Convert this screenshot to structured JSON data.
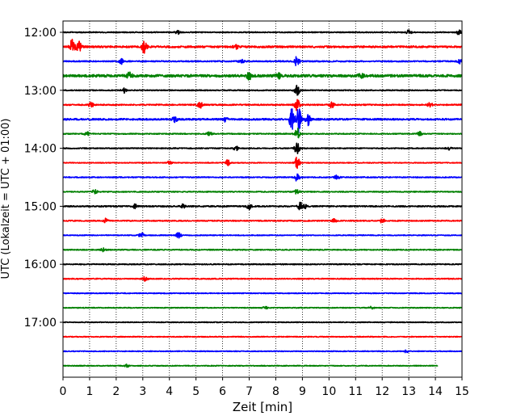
{
  "chart_data": {
    "type": "line",
    "title": "",
    "xlabel": "Zeit  [min]",
    "ylabel": "UTC (Lokalzeit = UTC + 01:00)",
    "xlim": [
      0,
      15
    ],
    "x_ticks": [
      0,
      1,
      2,
      3,
      4,
      5,
      6,
      7,
      8,
      9,
      10,
      11,
      12,
      13,
      14,
      15
    ],
    "y_tick_labels": [
      "12:00",
      "13:00",
      "14:00",
      "15:00",
      "16:00",
      "17:00"
    ],
    "grid": "vertical dotted",
    "trace_colors": [
      "#000000",
      "#ff0000",
      "#0000ff",
      "#008000"
    ],
    "trace_interval_minutes": 15,
    "series": [
      {
        "start": "12:00",
        "color": "#000000",
        "amplitude": 0.12,
        "events": [
          {
            "t": 4.3,
            "a": 0.5
          },
          {
            "t": 13.0,
            "a": 0.5
          },
          {
            "t": 14.9,
            "a": 0.6
          }
        ]
      },
      {
        "start": "12:15",
        "color": "#ff0000",
        "amplitude": 0.22,
        "events": [
          {
            "t": 0.35,
            "a": 2.2
          },
          {
            "t": 0.6,
            "a": 1.2
          },
          {
            "t": 3.05,
            "a": 1.5
          },
          {
            "t": 6.5,
            "a": 0.5
          }
        ]
      },
      {
        "start": "12:30",
        "color": "#0000ff",
        "amplitude": 0.15,
        "events": [
          {
            "t": 2.2,
            "a": 0.6
          },
          {
            "t": 6.7,
            "a": 0.6
          },
          {
            "t": 8.8,
            "a": 1.5
          },
          {
            "t": 14.9,
            "a": 0.5
          }
        ]
      },
      {
        "start": "12:45",
        "color": "#008000",
        "amplitude": 0.3,
        "events": [
          {
            "t": 2.5,
            "a": 0.7
          },
          {
            "t": 7.0,
            "a": 0.8
          },
          {
            "t": 8.1,
            "a": 0.6
          },
          {
            "t": 11.2,
            "a": 0.5
          }
        ]
      },
      {
        "start": "13:00",
        "color": "#000000",
        "amplitude": 0.12,
        "events": [
          {
            "t": 2.3,
            "a": 0.6
          },
          {
            "t": 8.8,
            "a": 1.3
          }
        ]
      },
      {
        "start": "13:15",
        "color": "#ff0000",
        "amplitude": 0.15,
        "events": [
          {
            "t": 1.05,
            "a": 0.6
          },
          {
            "t": 5.15,
            "a": 0.8
          },
          {
            "t": 8.8,
            "a": 1.6
          },
          {
            "t": 10.1,
            "a": 0.7
          },
          {
            "t": 13.8,
            "a": 0.5
          }
        ]
      },
      {
        "start": "13:30",
        "color": "#0000ff",
        "amplitude": 0.2,
        "events": [
          {
            "t": 4.2,
            "a": 0.6
          },
          {
            "t": 6.1,
            "a": 0.5
          },
          {
            "t": 8.6,
            "a": 2.5
          },
          {
            "t": 8.85,
            "a": 3.2
          },
          {
            "t": 9.2,
            "a": 1.5
          }
        ]
      },
      {
        "start": "13:45",
        "color": "#008000",
        "amplitude": 0.12,
        "events": [
          {
            "t": 0.9,
            "a": 0.5
          },
          {
            "t": 5.5,
            "a": 0.5
          },
          {
            "t": 8.8,
            "a": 1.6
          },
          {
            "t": 13.4,
            "a": 0.5
          }
        ]
      },
      {
        "start": "14:00",
        "color": "#000000",
        "amplitude": 0.12,
        "events": [
          {
            "t": 6.5,
            "a": 0.6
          },
          {
            "t": 8.8,
            "a": 1.5
          },
          {
            "t": 14.5,
            "a": 0.4
          }
        ]
      },
      {
        "start": "14:15",
        "color": "#ff0000",
        "amplitude": 0.1,
        "events": [
          {
            "t": 4.0,
            "a": 0.4
          },
          {
            "t": 6.2,
            "a": 0.8
          },
          {
            "t": 8.8,
            "a": 1.5
          }
        ]
      },
      {
        "start": "14:30",
        "color": "#0000ff",
        "amplitude": 0.12,
        "events": [
          {
            "t": 8.8,
            "a": 1.0
          },
          {
            "t": 10.3,
            "a": 0.6
          }
        ]
      },
      {
        "start": "14:45",
        "color": "#008000",
        "amplitude": 0.12,
        "events": [
          {
            "t": 1.2,
            "a": 0.5
          },
          {
            "t": 8.8,
            "a": 0.6
          }
        ]
      },
      {
        "start": "15:00",
        "color": "#000000",
        "amplitude": 0.15,
        "events": [
          {
            "t": 2.7,
            "a": 0.5
          },
          {
            "t": 4.5,
            "a": 0.5
          },
          {
            "t": 7.0,
            "a": 0.8
          },
          {
            "t": 8.9,
            "a": 0.8
          },
          {
            "t": 9.05,
            "a": 0.8
          }
        ]
      },
      {
        "start": "15:15",
        "color": "#ff0000",
        "amplitude": 0.13,
        "events": [
          {
            "t": 1.6,
            "a": 0.5
          },
          {
            "t": 10.2,
            "a": 0.5
          },
          {
            "t": 12.0,
            "a": 0.5
          }
        ]
      },
      {
        "start": "15:30",
        "color": "#0000ff",
        "amplitude": 0.1,
        "events": [
          {
            "t": 2.95,
            "a": 0.7
          },
          {
            "t": 4.35,
            "a": 0.7
          }
        ]
      },
      {
        "start": "15:45",
        "color": "#008000",
        "amplitude": 0.12,
        "events": [
          {
            "t": 1.5,
            "a": 0.4
          }
        ]
      },
      {
        "start": "16:00",
        "color": "#000000",
        "amplitude": 0.12,
        "events": []
      },
      {
        "start": "16:15",
        "color": "#ff0000",
        "amplitude": 0.12,
        "events": [
          {
            "t": 3.1,
            "a": 0.6
          }
        ]
      },
      {
        "start": "16:30",
        "color": "#0000ff",
        "amplitude": 0.1,
        "events": []
      },
      {
        "start": "16:45",
        "color": "#008000",
        "amplitude": 0.1,
        "events": [
          {
            "t": 7.6,
            "a": 0.3
          },
          {
            "t": 11.6,
            "a": 0.3
          }
        ]
      },
      {
        "start": "17:00",
        "color": "#000000",
        "amplitude": 0.1,
        "events": []
      },
      {
        "start": "17:15",
        "color": "#ff0000",
        "amplitude": 0.1,
        "events": []
      },
      {
        "start": "17:30",
        "color": "#0000ff",
        "amplitude": 0.1,
        "events": [
          {
            "t": 12.9,
            "a": 0.3
          }
        ]
      },
      {
        "start": "17:45",
        "color": "#008000",
        "amplitude": 0.1,
        "end": 14.1,
        "events": [
          {
            "t": 2.4,
            "a": 0.3
          }
        ]
      }
    ]
  }
}
